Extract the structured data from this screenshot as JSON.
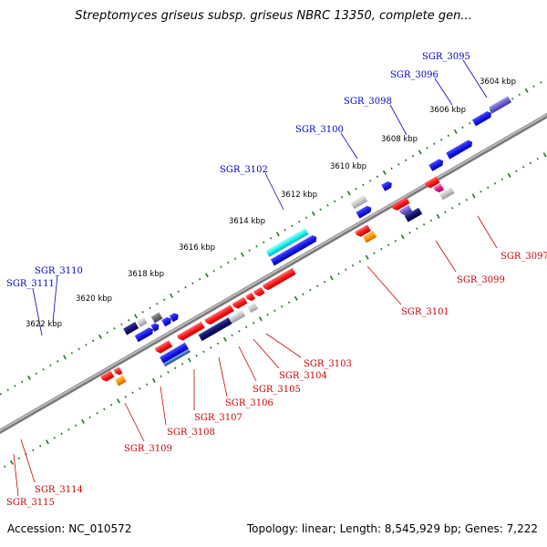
{
  "title": "Streptomyces griseus subsp. griseus NBRC 13350, complete gen...",
  "footer": {
    "accession": "Accession: NC_010572",
    "summary": "Topology: linear; Length: 8,545,929 bp; Genes: 7,222"
  },
  "ticks": [
    {
      "kbp": 3604,
      "label": "3604 kbp"
    },
    {
      "kbp": 3606,
      "label": "3606 kbp"
    },
    {
      "kbp": 3608,
      "label": "3608 kbp"
    },
    {
      "kbp": 3610,
      "label": "3610 kbp"
    },
    {
      "kbp": 3612,
      "label": "3612 kbp"
    },
    {
      "kbp": 3614,
      "label": "3614 kbp"
    },
    {
      "kbp": 3616,
      "label": "3616 kbp"
    },
    {
      "kbp": 3618,
      "label": "3618 kbp"
    },
    {
      "kbp": 3620,
      "label": "3620 kbp"
    },
    {
      "kbp": 3622,
      "label": "3622 kbp"
    }
  ],
  "top_genes": [
    {
      "label": "SGR_3095",
      "color": "#0000cc"
    },
    {
      "label": "SGR_3096",
      "color": "#0000cc"
    },
    {
      "label": "SGR_3098",
      "color": "#0000cc"
    },
    {
      "label": "SGR_3100",
      "color": "#0000cc"
    },
    {
      "label": "SGR_3102",
      "color": "#0000cc"
    },
    {
      "label": "SGR_3110",
      "color": "#0000cc"
    },
    {
      "label": "SGR_3111",
      "color": "#0000cc"
    }
  ],
  "bottom_genes": [
    {
      "label": "SGR_3097",
      "color": "#cc0000"
    },
    {
      "label": "SGR_3099",
      "color": "#cc0000"
    },
    {
      "label": "SGR_3101",
      "color": "#cc0000"
    },
    {
      "label": "SGR_3103",
      "color": "#cc0000"
    },
    {
      "label": "SGR_3104",
      "color": "#cc0000"
    },
    {
      "label": "SGR_3105",
      "color": "#cc0000"
    },
    {
      "label": "SGR_3106",
      "color": "#cc0000"
    },
    {
      "label": "SGR_3107",
      "color": "#cc0000"
    },
    {
      "label": "SGR_3108",
      "color": "#cc0000"
    },
    {
      "label": "SGR_3109",
      "color": "#cc0000"
    },
    {
      "label": "SGR_3114",
      "color": "#cc0000"
    },
    {
      "label": "SGR_3115",
      "color": "#cc0000"
    }
  ],
  "colors": {
    "backbone": "#808080",
    "tick": "#1a7a1a",
    "top_label": "#0000cc",
    "bottom_label": "#cc0000"
  }
}
